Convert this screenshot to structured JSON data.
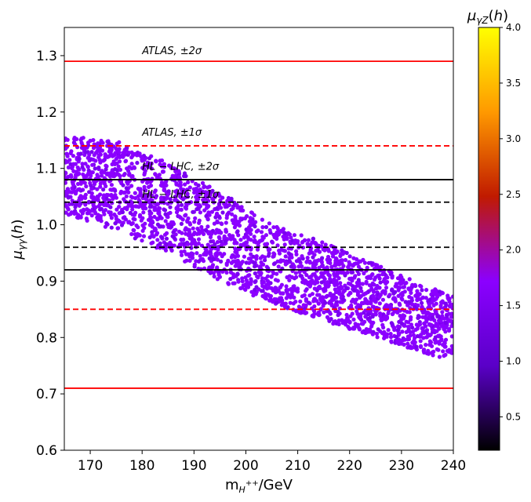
{
  "chart_data": {
    "type": "scatter",
    "xlabel": "m_{H⁺⁺}/GeV",
    "ylabel": "μ_{γγ}(h)",
    "xlim": [
      165,
      240
    ],
    "ylim": [
      0.6,
      1.35
    ],
    "x_ticks": [
      170,
      180,
      190,
      200,
      210,
      220,
      230,
      240
    ],
    "y_ticks": [
      0.6,
      0.7,
      0.8,
      0.9,
      1.0,
      1.1,
      1.2,
      1.3
    ],
    "x_tick_labels": [
      "170",
      "180",
      "190",
      "200",
      "210",
      "220",
      "230",
      "240"
    ],
    "y_tick_labels": [
      "0.6",
      "0.7",
      "0.8",
      "0.9",
      "1.0",
      "1.1",
      "1.2",
      "1.3"
    ],
    "colorbar": {
      "label": "μ_{γZ}(h)",
      "range": [
        0.2,
        4.0
      ],
      "ticks": [
        0.5,
        1.0,
        1.5,
        2.0,
        2.5,
        3.0,
        3.5,
        4.0
      ],
      "tick_labels": [
        "0.5",
        "1.0",
        "1.5",
        "2.0",
        "2.5",
        "3.0",
        "3.5",
        "4.0"
      ],
      "colormap": "gnuplot",
      "colors": [
        "#000000",
        "#5a00c8",
        "#8b00ff",
        "#c01a00",
        "#ff9900",
        "#ffff00"
      ]
    },
    "scatter_band": {
      "description": "dense band of points, color ≈ 1.5 (purple)",
      "color": "#8b00ff",
      "marker": "circle",
      "band": [
        {
          "x": 165,
          "y_low": 1.02,
          "y_high": 1.16
        },
        {
          "x": 175,
          "y_low": 0.99,
          "y_high": 1.15
        },
        {
          "x": 185,
          "y_low": 0.95,
          "y_high": 1.11
        },
        {
          "x": 195,
          "y_low": 0.9,
          "y_high": 1.06
        },
        {
          "x": 205,
          "y_low": 0.86,
          "y_high": 1.0
        },
        {
          "x": 215,
          "y_low": 0.83,
          "y_high": 0.97
        },
        {
          "x": 225,
          "y_low": 0.8,
          "y_high": 0.93
        },
        {
          "x": 235,
          "y_low": 0.77,
          "y_high": 0.89
        },
        {
          "x": 240,
          "y_low": 0.76,
          "y_high": 0.88
        }
      ],
      "approx_count": 2600
    },
    "reference_lines": [
      {
        "name": "atlas-2sigma-upper",
        "y": 1.29,
        "color": "#ff0000",
        "style": "solid"
      },
      {
        "name": "atlas-1sigma-upper",
        "y": 1.14,
        "color": "#ff0000",
        "style": "dashed"
      },
      {
        "name": "hl-lhc-2sigma-upper",
        "y": 1.08,
        "color": "#000000",
        "style": "solid"
      },
      {
        "name": "hl-lhc-1sigma-upper",
        "y": 1.04,
        "color": "#000000",
        "style": "dashed"
      },
      {
        "name": "hl-lhc-1sigma-lower",
        "y": 0.96,
        "color": "#000000",
        "style": "dashed"
      },
      {
        "name": "hl-lhc-2sigma-lower",
        "y": 0.92,
        "color": "#000000",
        "style": "solid"
      },
      {
        "name": "atlas-1sigma-lower",
        "y": 0.85,
        "color": "#ff0000",
        "style": "dashed"
      },
      {
        "name": "atlas-2sigma-lower",
        "y": 0.71,
        "color": "#ff0000",
        "style": "solid"
      }
    ],
    "annotations": [
      {
        "name": "atlas-2sigma-label",
        "text": "ATLAS, ±2σ",
        "x": 180,
        "y": 1.3
      },
      {
        "name": "atlas-1sigma-label",
        "text": "ATLAS, ±1σ",
        "x": 180,
        "y": 1.155
      },
      {
        "name": "hl-lhc-2sigma-label",
        "text": "HL − LHC, ±2σ",
        "x": 180,
        "y": 1.095
      },
      {
        "name": "hl-lhc-1sigma-label",
        "text": "HL − LHC, ±1σ",
        "x": 180,
        "y": 1.045
      }
    ]
  }
}
